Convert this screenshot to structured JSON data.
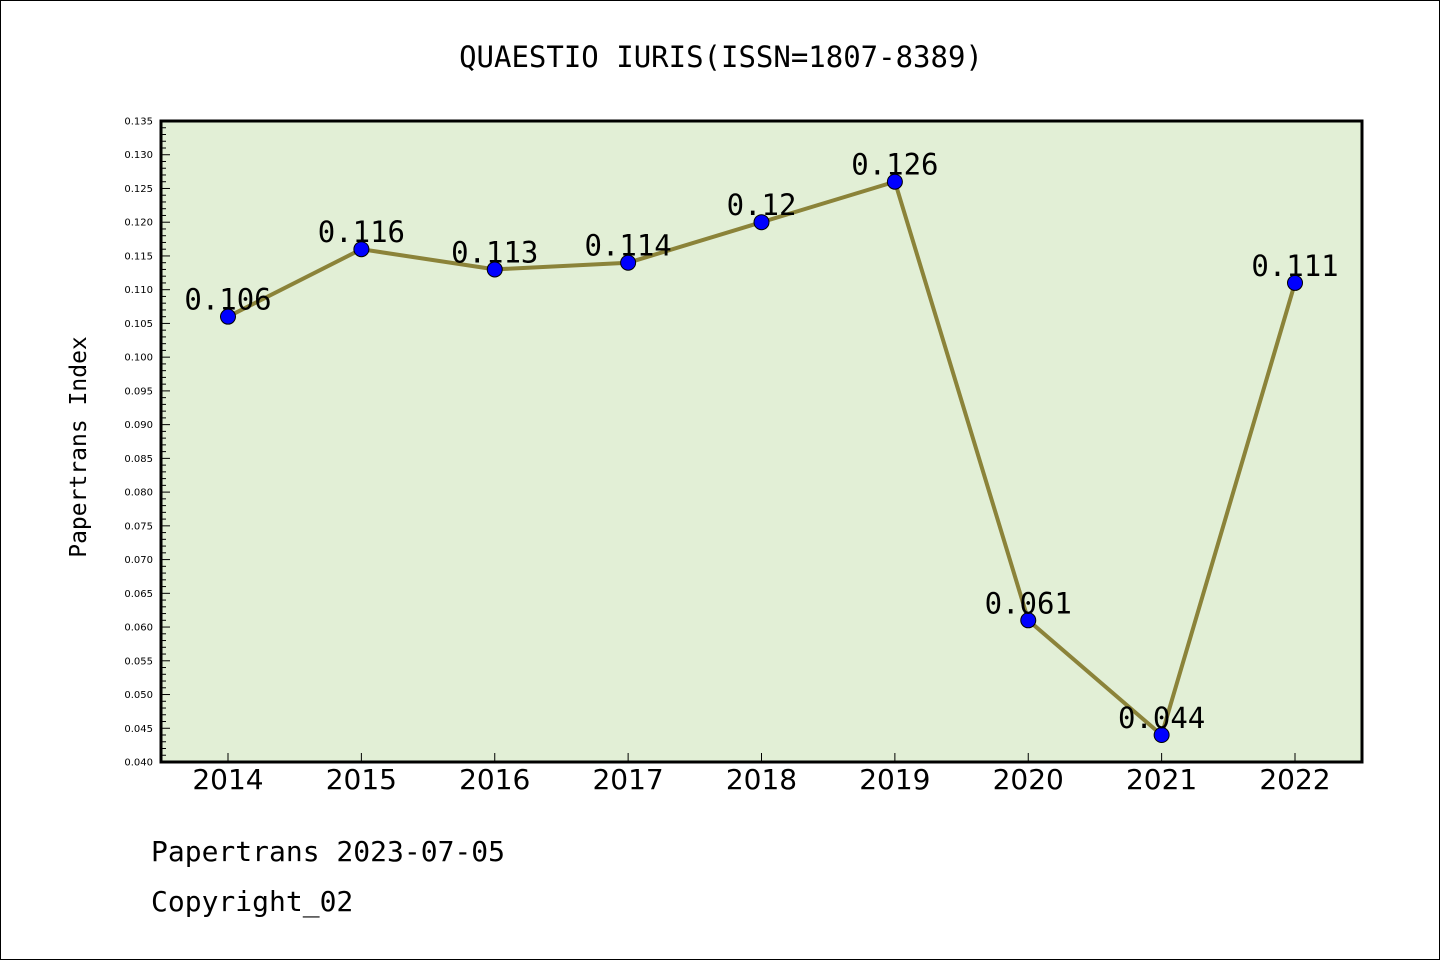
{
  "chart_data": {
    "type": "line",
    "title": "QUAESTIO IURIS(ISSN=1807-8389)",
    "xlabel": "",
    "ylabel": "Papertrans Index",
    "categories": [
      "2014",
      "2015",
      "2016",
      "2017",
      "2018",
      "2019",
      "2020",
      "2021",
      "2022"
    ],
    "series": [
      {
        "values": [
          0.106,
          0.116,
          0.113,
          0.114,
          0.12,
          0.126,
          0.061,
          0.044,
          0.111
        ],
        "labels": [
          "0.106",
          "0.116",
          "0.113",
          "0.114",
          "0.12",
          "0.126",
          "0.061",
          "0.044",
          "0.111"
        ]
      }
    ],
    "ylim": [
      0.04,
      0.135
    ],
    "yticks": [
      "0.040",
      "0.045",
      "0.050",
      "0.055",
      "0.060",
      "0.065",
      "0.070",
      "0.075",
      "0.080",
      "0.085",
      "0.090",
      "0.095",
      "0.100",
      "0.105",
      "0.110",
      "0.115",
      "0.120",
      "0.125",
      "0.130",
      "0.135"
    ],
    "grid": false,
    "colors": {
      "plot_background": "#e2efd6",
      "line": "#8b8339",
      "marker": "#0000ff"
    }
  },
  "footer": {
    "line1": "Papertrans 2023-07-05",
    "line2": "Copyright_02"
  }
}
